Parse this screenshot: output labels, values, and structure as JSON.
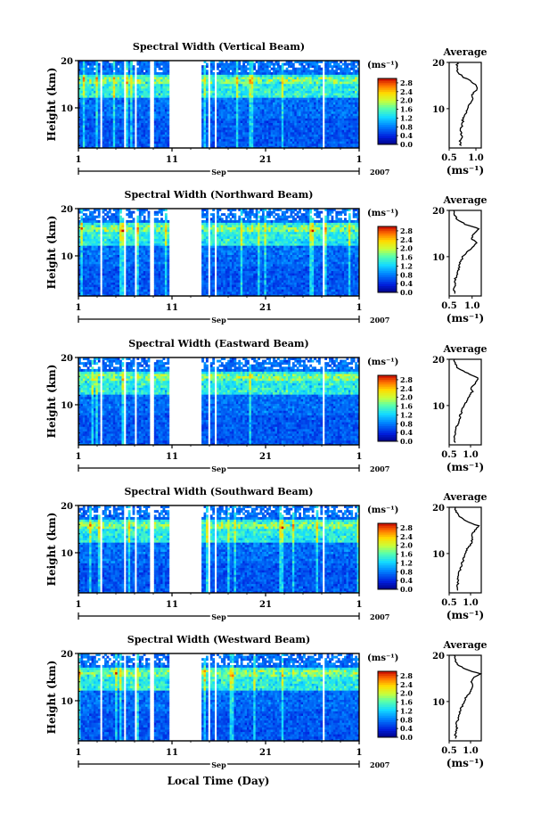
{
  "figure": {
    "xlabel": "Local Time (Day)",
    "x_ticks": [
      "1",
      "11",
      "21",
      "1"
    ],
    "month": "Sep",
    "year": "2007",
    "ylabel": "Height (km)",
    "y_ticks": [
      "20",
      "10"
    ],
    "cb_unit": "(ms⁻¹)",
    "cb_ticks": [
      "0.0",
      "0.4",
      "0.8",
      "1.2",
      "1.6",
      "2.0",
      "2.4",
      "2.8"
    ],
    "avg_title": "Average",
    "avg_xlabel": "(ms⁻¹)"
  },
  "chart_data": [
    {
      "type": "heatmap",
      "title": "Spectral Width (Vertical Beam)",
      "xlabel": "Local Time (Day)",
      "ylabel": "Height (km)",
      "x_range_days": [
        1,
        31
      ],
      "ylim": [
        1.5,
        20
      ],
      "colorbar": {
        "label": "(ms⁻¹)",
        "range": [
          0.0,
          3.0
        ],
        "ticks": [
          "0.0",
          "0.4",
          "0.8",
          "1.2",
          "1.6",
          "2.0",
          "2.4",
          "2.8"
        ]
      },
      "data_gaps_days": [
        [
          8.6,
          9.1
        ],
        [
          10.6,
          14.2
        ]
      ],
      "average_profile": {
        "title": "Average",
        "xlabel": "(ms⁻¹)",
        "xlim": [
          0.5,
          1.1
        ],
        "x_ticks": [
          "0.5",
          "1.0"
        ],
        "height_km": [
          2,
          3,
          4,
          5,
          6,
          7,
          8,
          9,
          10,
          11,
          12,
          13,
          14,
          15,
          16,
          17,
          18,
          19,
          20
        ],
        "value": [
          0.72,
          0.7,
          0.74,
          0.71,
          0.73,
          0.76,
          0.75,
          0.8,
          0.84,
          0.88,
          0.95,
          0.92,
          1.0,
          1.02,
          0.9,
          0.74,
          0.66,
          0.64,
          0.66
        ]
      }
    },
    {
      "type": "heatmap",
      "title": "Spectral Width (Northward Beam)",
      "xlabel": "Local Time (Day)",
      "ylabel": "Height (km)",
      "x_range_days": [
        1,
        31
      ],
      "ylim": [
        1.5,
        20
      ],
      "colorbar": {
        "label": "(ms⁻¹)",
        "range": [
          0.0,
          3.0
        ],
        "ticks": [
          "0.0",
          "0.4",
          "0.8",
          "1.2",
          "1.6",
          "2.0",
          "2.4",
          "2.8"
        ]
      },
      "data_gaps_days": [
        [
          8.6,
          9.1
        ],
        [
          10.6,
          14.2
        ]
      ],
      "average_profile": {
        "title": "Average",
        "xlabel": "(ms⁻¹)",
        "xlim": [
          0.5,
          1.2
        ],
        "x_ticks": [
          "0.5",
          "1.0"
        ],
        "height_km": [
          2,
          3,
          4,
          5,
          6,
          7,
          8,
          9,
          10,
          11,
          12,
          13,
          14,
          15,
          16,
          17,
          18,
          19,
          20
        ],
        "value": [
          0.62,
          0.6,
          0.64,
          0.63,
          0.66,
          0.7,
          0.72,
          0.75,
          0.8,
          0.88,
          1.0,
          1.1,
          0.98,
          1.05,
          1.15,
          0.85,
          0.68,
          0.62,
          0.6
        ]
      }
    },
    {
      "type": "heatmap",
      "title": "Spectral Width (Eastward Beam)",
      "xlabel": "Local Time (Day)",
      "ylabel": "Height (km)",
      "x_range_days": [
        1,
        31
      ],
      "ylim": [
        1.5,
        20
      ],
      "colorbar": {
        "label": "(ms⁻¹)",
        "range": [
          0.0,
          3.0
        ],
        "ticks": [
          "0.0",
          "0.4",
          "0.8",
          "1.2",
          "1.6",
          "2.0",
          "2.4",
          "2.8"
        ]
      },
      "data_gaps_days": [
        [
          8.6,
          9.1
        ],
        [
          10.6,
          14.2
        ]
      ],
      "average_profile": {
        "title": "Average",
        "xlabel": "(ms⁻¹)",
        "xlim": [
          0.5,
          1.25
        ],
        "x_ticks": [
          "0.5",
          "1.0"
        ],
        "height_km": [
          2,
          3,
          4,
          5,
          6,
          7,
          8,
          9,
          10,
          11,
          12,
          13,
          14,
          15,
          16,
          17,
          18,
          19,
          20
        ],
        "value": [
          0.64,
          0.62,
          0.66,
          0.64,
          0.7,
          0.74,
          0.76,
          0.8,
          0.85,
          0.9,
          0.98,
          1.04,
          1.02,
          1.12,
          1.18,
          0.92,
          0.7,
          0.64,
          0.62
        ]
      }
    },
    {
      "type": "heatmap",
      "title": "Spectral Width (Southward Beam)",
      "xlabel": "Local Time (Day)",
      "ylabel": "Height (km)",
      "x_range_days": [
        1,
        31
      ],
      "ylim": [
        1.5,
        20
      ],
      "colorbar": {
        "label": "(ms⁻¹)",
        "range": [
          0.0,
          3.0
        ],
        "ticks": [
          "0.0",
          "0.4",
          "0.8",
          "1.2",
          "1.6",
          "2.0",
          "2.4",
          "2.8"
        ]
      },
      "data_gaps_days": [
        [
          8.6,
          9.1
        ],
        [
          10.6,
          14.2
        ]
      ],
      "average_profile": {
        "title": "Average",
        "xlabel": "(ms⁻¹)",
        "xlim": [
          0.5,
          1.25
        ],
        "x_ticks": [
          "0.5",
          "1.0"
        ],
        "height_km": [
          2,
          3,
          4,
          5,
          6,
          7,
          8,
          9,
          10,
          11,
          12,
          13,
          14,
          15,
          16,
          17,
          18,
          19,
          20
        ],
        "value": [
          0.7,
          0.68,
          0.72,
          0.7,
          0.74,
          0.78,
          0.8,
          0.84,
          0.88,
          0.92,
          1.0,
          1.04,
          1.02,
          1.1,
          1.18,
          0.9,
          0.74,
          0.66,
          0.64
        ]
      }
    },
    {
      "type": "heatmap",
      "title": "Spectral Width (Westward Beam)",
      "xlabel": "Local Time (Day)",
      "ylabel": "Height (km)",
      "x_range_days": [
        1,
        31
      ],
      "ylim": [
        1.5,
        20
      ],
      "colorbar": {
        "label": "(ms⁻¹)",
        "range": [
          0.0,
          3.0
        ],
        "ticks": [
          "0.0",
          "0.4",
          "0.8",
          "1.2",
          "1.6",
          "2.0",
          "2.4",
          "2.8"
        ]
      },
      "data_gaps_days": [
        [
          8.6,
          9.1
        ],
        [
          10.6,
          14.2
        ]
      ],
      "average_profile": {
        "title": "Average",
        "xlabel": "(ms⁻¹)",
        "xlim": [
          0.5,
          1.25
        ],
        "x_ticks": [
          "0.5",
          "1.0"
        ],
        "height_km": [
          2,
          3,
          4,
          5,
          6,
          7,
          8,
          9,
          10,
          11,
          12,
          13,
          14,
          15,
          16,
          17,
          18,
          19,
          20
        ],
        "value": [
          0.66,
          0.64,
          0.68,
          0.66,
          0.7,
          0.74,
          0.76,
          0.8,
          0.84,
          0.9,
          1.0,
          1.04,
          1.02,
          1.06,
          1.22,
          0.88,
          0.7,
          0.64,
          0.62
        ]
      }
    }
  ]
}
